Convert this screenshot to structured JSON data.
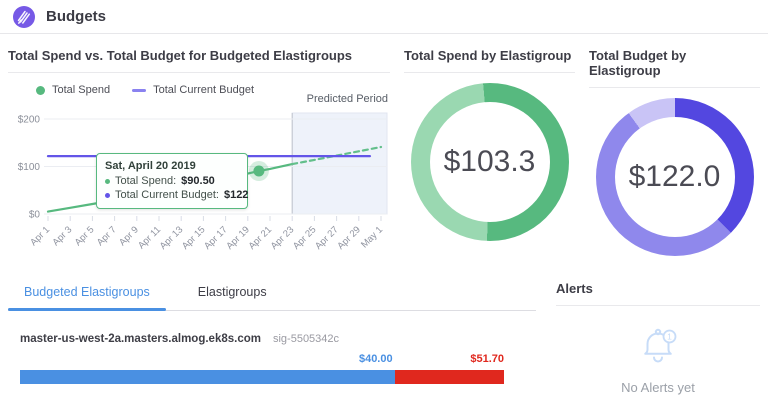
{
  "header": {
    "title": "Budgets"
  },
  "colors": {
    "brand_purple": "#7659e6",
    "accent_blue": "#4a90e2",
    "spend_green": "#57b97f",
    "budget_purple": "#6355e8",
    "over_red": "#e0281e"
  },
  "chart_data": [
    {
      "type": "line",
      "title": "Total Spend vs. Total Budget for Budgeted Elastigroups",
      "legend": [
        {
          "label": "Total Spend",
          "color": "#57b97f",
          "marker": "dot"
        },
        {
          "label": "Total Current Budget",
          "color": "#8a82f0",
          "marker": "dash"
        }
      ],
      "ylim": [
        0,
        200
      ],
      "y_ticks": [
        {
          "value": 0,
          "label": "$0"
        },
        {
          "value": 100,
          "label": "$100"
        },
        {
          "value": 200,
          "label": "$200"
        }
      ],
      "tick_days": [
        1,
        3,
        5,
        7,
        9,
        11,
        13,
        15,
        17,
        19,
        21,
        23,
        25,
        27,
        29,
        31
      ],
      "tick_labels": [
        "Apr 1",
        "Apr 3",
        "Apr 5",
        "Apr 7",
        "Apr 9",
        "Apr 11",
        "Apr 13",
        "Apr 15",
        "Apr 17",
        "Apr 19",
        "Apr 21",
        "Apr 23",
        "Apr 25",
        "Apr 27",
        "Apr 29",
        "May 1"
      ],
      "series": [
        {
          "name": "Total Spend",
          "style": "solid",
          "color": "#57b97f",
          "points": [
            [
              1,
              5
            ],
            [
              3,
              13
            ],
            [
              5,
              21
            ],
            [
              7,
              29
            ],
            [
              9,
              38
            ],
            [
              11,
              47
            ],
            [
              13,
              56
            ],
            [
              15,
              65
            ],
            [
              17,
              74
            ],
            [
              19,
              85
            ],
            [
              20,
              90.5
            ],
            [
              21,
              95
            ],
            [
              23,
              105
            ]
          ]
        },
        {
          "name": "Total Spend (predicted)",
          "style": "dashed",
          "color": "#63bf8b",
          "points": [
            [
              23,
              105
            ],
            [
              25,
              114
            ],
            [
              27,
              123
            ],
            [
              29,
              132
            ],
            [
              31,
              141
            ]
          ]
        },
        {
          "name": "Total Current Budget",
          "style": "solid",
          "color": "#6355e8",
          "points": [
            [
              1,
              122
            ],
            [
              30,
              122
            ]
          ]
        }
      ],
      "predicted_period": {
        "label": "Predicted Period",
        "start_day": 23,
        "end_day": 31,
        "fill": "#eef2fa"
      },
      "highlight": {
        "day": 20,
        "value": 90.5,
        "color": "#57b97f"
      },
      "tooltip": {
        "date": "Sat, April 20 2019",
        "rows": [
          {
            "label": "Total Spend:",
            "value": "$90.50",
            "color": "#57b97f"
          },
          {
            "label": "Total Current Budget:",
            "value": "$122",
            "color": "#6355e8"
          }
        ]
      }
    },
    {
      "type": "pie",
      "title": "Total Spend by Elastigroup",
      "center_label": "$103.3",
      "start_angle": -5,
      "segments": [
        {
          "fraction": 0.52,
          "color": "#57b97f"
        },
        {
          "fraction": 0.48,
          "color": "#9ad8b1"
        }
      ]
    },
    {
      "type": "pie",
      "title": "Total Budget by Elastigroup",
      "center_label": "$122.0",
      "start_angle": 0,
      "segments": [
        {
          "fraction": 0.375,
          "color": "#5347e0"
        },
        {
          "fraction": 0.525,
          "color": "#8f88ec"
        },
        {
          "fraction": 0.1,
          "color": "#c9c4f6"
        }
      ]
    }
  ],
  "tabs": [
    {
      "label": "Budgeted Elastigroups",
      "active": true
    },
    {
      "label": "Elastigroups",
      "active": false
    }
  ],
  "budgeted_groups": [
    {
      "name": "master-us-west-2a.masters.almog.ek8s.com",
      "sig": "sig-5505342c",
      "budget_label": "$40.00",
      "total_label": "$51.70",
      "budget_value": 40.0,
      "total_value": 51.7
    }
  ],
  "alerts": {
    "title": "Alerts",
    "empty_text": "No Alerts yet",
    "bell_badge": "1"
  }
}
